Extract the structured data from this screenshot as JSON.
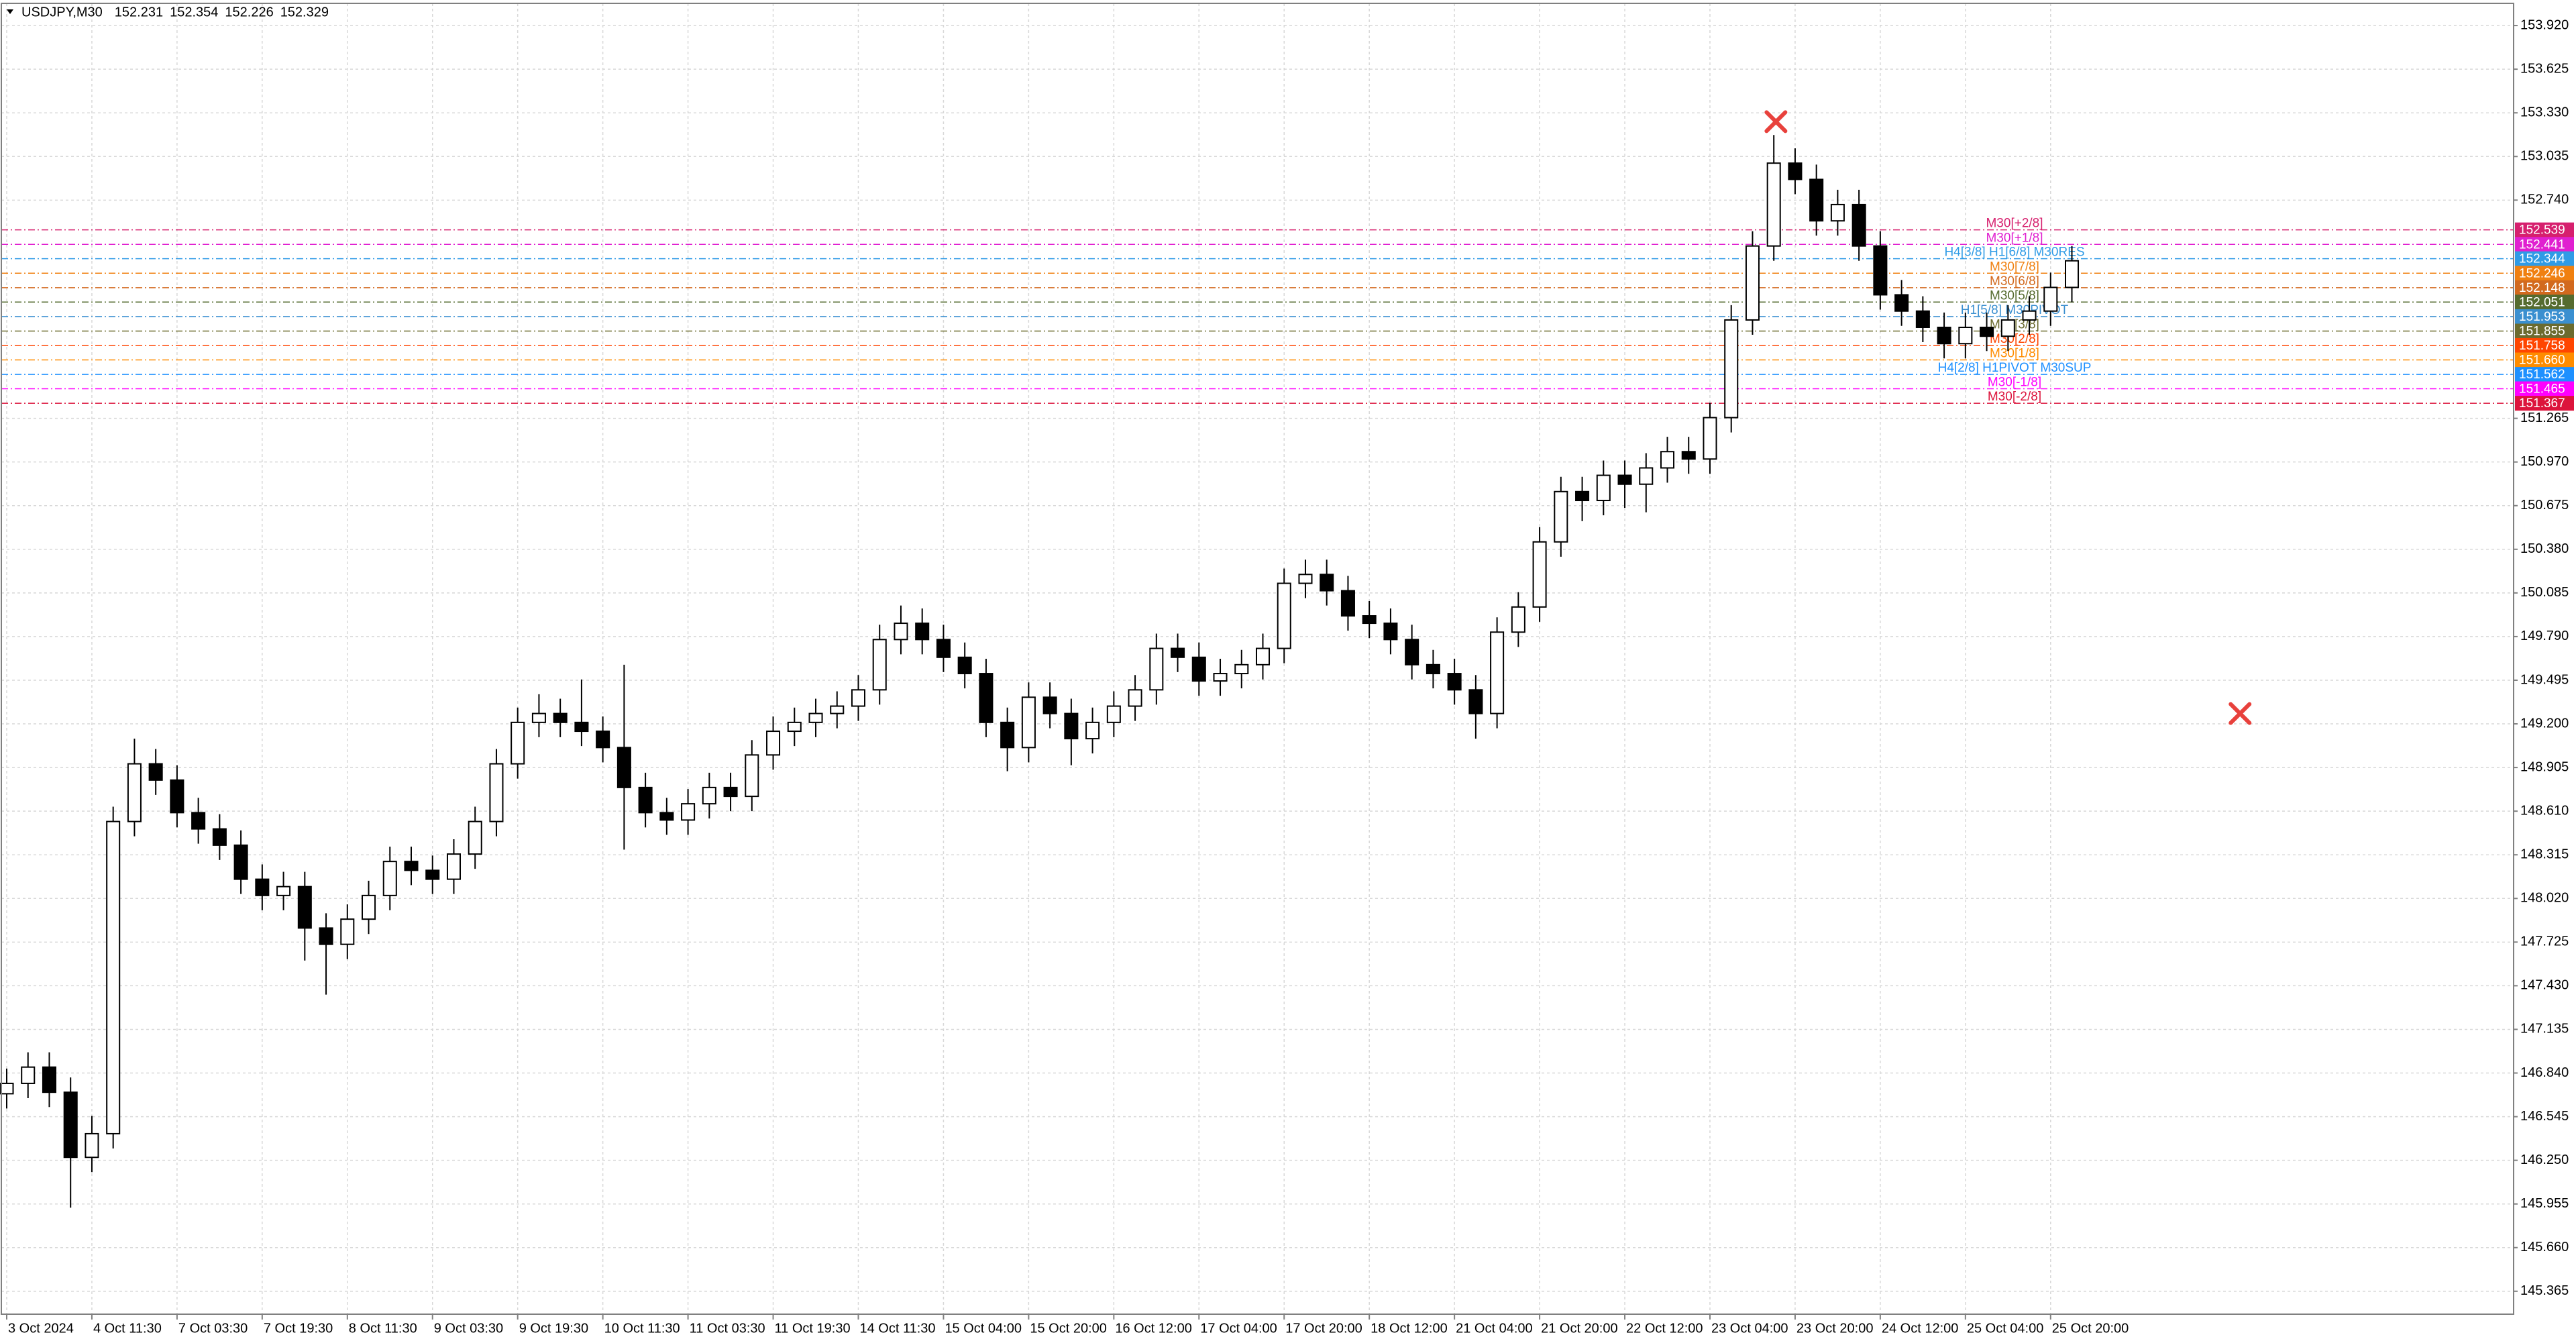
{
  "chart_data": {
    "type": "candlestick",
    "title": "USDJPY,M30",
    "quote": [
      152.231,
      152.354,
      152.226,
      152.329
    ],
    "categories": [
      "3 Oct 2024",
      null,
      null,
      null,
      "4 Oct 11:30",
      null,
      null,
      null,
      "7 Oct 03:30",
      null,
      null,
      null,
      "7 Oct 19:30",
      null,
      null,
      null,
      "8 Oct 11:30",
      null,
      null,
      null,
      "9 Oct 03:30",
      null,
      null,
      null,
      "9 Oct 19:30",
      null,
      null,
      null,
      "10 Oct 11:30",
      null,
      null,
      null,
      "11 Oct 03:30",
      null,
      null,
      null,
      "11 Oct 19:30",
      null,
      null,
      null,
      "14 Oct 11:30",
      null,
      null,
      null,
      "15 Oct 04:00",
      null,
      null,
      null,
      "15 Oct 20:00",
      null,
      null,
      null,
      "16 Oct 12:00",
      null,
      null,
      null,
      "17 Oct 04:00",
      null,
      null,
      null,
      "17 Oct 20:00",
      null,
      null,
      null,
      "18 Oct 12:00",
      null,
      null,
      null,
      "21 Oct 04:00",
      null,
      null,
      null,
      "21 Oct 20:00",
      null,
      null,
      null,
      "22 Oct 12:00",
      null,
      null,
      null,
      "23 Oct 04:00",
      null,
      null,
      null,
      "23 Oct 20:00",
      null,
      null,
      null,
      "24 Oct 12:00",
      null,
      null,
      null,
      "25 Oct 04:00",
      null,
      null,
      null,
      "25 Oct 20:00",
      null
    ],
    "open": [
      146.7,
      146.77,
      146.88,
      146.71,
      146.27,
      146.43,
      148.54,
      148.93,
      148.82,
      148.6,
      148.49,
      148.38,
      148.15,
      148.04,
      148.1,
      147.82,
      147.71,
      147.88,
      148.04,
      148.27,
      148.21,
      148.15,
      148.32,
      148.54,
      148.93,
      149.21,
      149.27,
      149.21,
      149.15,
      149.04,
      148.77,
      148.6,
      148.55,
      148.66,
      148.77,
      148.71,
      148.99,
      149.15,
      149.21,
      149.27,
      149.32,
      149.43,
      149.77,
      149.88,
      149.77,
      149.65,
      149.54,
      149.21,
      149.04,
      149.38,
      149.27,
      149.1,
      149.21,
      149.32,
      149.43,
      149.71,
      149.65,
      149.49,
      149.54,
      149.6,
      149.71,
      150.15,
      150.21,
      150.1,
      149.93,
      149.88,
      149.77,
      149.6,
      149.54,
      149.43,
      149.27,
      149.82,
      149.99,
      150.43,
      150.77,
      150.71,
      150.88,
      150.82,
      150.93,
      151.04,
      150.99,
      151.27,
      151.93,
      152.43,
      152.99,
      152.88,
      152.6,
      152.71,
      152.43,
      152.1,
      151.99,
      151.88,
      151.77,
      151.88,
      151.82,
      151.93,
      151.99,
      152.15
    ],
    "high": [
      146.87,
      146.98,
      146.98,
      146.81,
      146.55,
      148.64,
      149.1,
      149.03,
      148.92,
      148.7,
      148.59,
      148.48,
      148.25,
      148.2,
      148.2,
      147.92,
      147.98,
      148.14,
      148.37,
      148.37,
      148.31,
      148.42,
      148.64,
      149.03,
      149.31,
      149.4,
      149.37,
      149.5,
      149.25,
      149.6,
      148.87,
      148.7,
      148.76,
      148.87,
      148.87,
      149.09,
      149.25,
      149.31,
      149.37,
      149.42,
      149.53,
      149.87,
      150.0,
      149.98,
      149.87,
      149.75,
      149.64,
      149.31,
      149.48,
      149.48,
      149.37,
      149.31,
      149.42,
      149.53,
      149.81,
      149.81,
      149.75,
      149.64,
      149.7,
      149.81,
      150.25,
      150.31,
      150.31,
      150.2,
      150.03,
      149.98,
      149.87,
      149.7,
      149.64,
      149.53,
      149.92,
      150.09,
      150.53,
      150.87,
      150.87,
      150.98,
      150.98,
      151.03,
      151.14,
      151.14,
      151.37,
      152.03,
      152.53,
      153.18,
      153.09,
      152.98,
      152.81,
      152.81,
      152.53,
      152.2,
      152.09,
      151.98,
      151.98,
      151.98,
      152.03,
      152.09,
      152.25,
      152.43
    ],
    "low": [
      146.6,
      146.67,
      146.61,
      145.93,
      146.17,
      146.33,
      148.44,
      148.72,
      148.5,
      148.39,
      148.28,
      148.05,
      147.94,
      147.94,
      147.6,
      147.37,
      147.61,
      147.78,
      147.94,
      148.11,
      148.05,
      148.05,
      148.22,
      148.44,
      148.83,
      149.11,
      149.11,
      149.05,
      148.94,
      148.35,
      148.5,
      148.45,
      148.45,
      148.56,
      148.61,
      148.61,
      148.89,
      149.05,
      149.11,
      149.17,
      149.22,
      149.33,
      149.67,
      149.67,
      149.55,
      149.44,
      149.11,
      148.88,
      148.94,
      149.17,
      148.92,
      149.0,
      149.11,
      149.22,
      149.33,
      149.55,
      149.39,
      149.39,
      149.44,
      149.5,
      149.61,
      150.05,
      150.0,
      149.83,
      149.78,
      149.67,
      149.5,
      149.44,
      149.33,
      149.1,
      149.17,
      149.72,
      149.89,
      150.33,
      150.57,
      150.61,
      150.66,
      150.63,
      150.83,
      150.89,
      150.89,
      151.17,
      151.83,
      152.33,
      152.78,
      152.5,
      152.5,
      152.33,
      152.0,
      151.89,
      151.78,
      151.67,
      151.67,
      151.72,
      151.72,
      151.83,
      151.89,
      152.05
    ],
    "close": [
      146.77,
      146.88,
      146.71,
      146.27,
      146.43,
      148.54,
      148.93,
      148.82,
      148.6,
      148.49,
      148.38,
      148.15,
      148.04,
      148.1,
      147.82,
      147.71,
      147.88,
      148.04,
      148.27,
      148.21,
      148.15,
      148.32,
      148.54,
      148.93,
      149.21,
      149.27,
      149.21,
      149.15,
      149.04,
      148.77,
      148.6,
      148.55,
      148.66,
      148.77,
      148.71,
      148.99,
      149.15,
      149.21,
      149.27,
      149.32,
      149.43,
      149.77,
      149.88,
      149.77,
      149.65,
      149.54,
      149.21,
      149.04,
      149.38,
      149.27,
      149.1,
      149.21,
      149.32,
      149.43,
      149.71,
      149.65,
      149.49,
      149.54,
      149.6,
      149.71,
      150.15,
      150.21,
      150.1,
      149.93,
      149.88,
      149.77,
      149.6,
      149.54,
      149.43,
      149.27,
      149.82,
      149.99,
      150.43,
      150.77,
      150.71,
      150.88,
      150.82,
      150.93,
      151.04,
      150.99,
      151.27,
      151.93,
      152.43,
      152.99,
      152.88,
      152.6,
      152.71,
      152.43,
      152.1,
      151.99,
      151.88,
      151.77,
      151.88,
      151.82,
      151.93,
      151.99,
      152.15,
      152.33
    ],
    "color": "#000000",
    "ylim": [
      145.21,
      154.07
    ],
    "yticks": [
      {
        "value": 153.92,
        "label": "153.920"
      },
      153.625,
      {
        "value": 153.33,
        "label": "153.330"
      },
      153.035,
      {
        "value": 152.74,
        "label": "152.740"
      },
      151.265,
      {
        "value": 150.97,
        "label": "150.970"
      },
      150.675,
      {
        "value": 150.38,
        "label": "150.380"
      },
      150.085,
      {
        "value": 149.79,
        "label": "149.790"
      },
      149.495,
      {
        "value": 149.2,
        "label": "149.200"
      },
      148.905,
      {
        "value": 148.61,
        "label": "148.610"
      },
      148.315,
      {
        "value": 148.02,
        "label": "148.020"
      },
      147.725,
      {
        "value": 147.43,
        "label": "147.430"
      },
      147.135,
      {
        "value": 146.84,
        "label": "146.840"
      },
      146.545,
      {
        "value": 146.25,
        "label": "146.250"
      },
      145.955,
      {
        "value": 145.66,
        "label": "145.660"
      },
      145.365
    ],
    "grid": true,
    "levels": [
      {
        "name": "M30[+2/8]",
        "value": 152.539,
        "color": "#d6206e"
      },
      {
        "name": "M30[+1/8]",
        "value": 152.441,
        "color": "#e020d0"
      },
      {
        "name": "H4[3/8] H1[6/8] M30RES",
        "value": 152.344,
        "color": "#2f9be6"
      },
      {
        "name": "M30[7/8]",
        "value": 152.246,
        "color": "#f08010"
      },
      {
        "name": "M30[6/8]",
        "value": 152.148,
        "color": "#d2691e"
      },
      {
        "name": "M30[5/8]",
        "value": 152.051,
        "color": "#556b2f"
      },
      {
        "name": "H1[5/8] M30PIVOT",
        "value": 151.953,
        "color": "#3a8fd0"
      },
      {
        "name": "M30[3/8]",
        "value": 151.855,
        "color": "#6b6b2f"
      },
      {
        "name": "M30[2/8]",
        "value": 151.758,
        "color": "#ff4500"
      },
      {
        "name": "M30[1/8]",
        "value": 151.66,
        "label": "151.660",
        "color": "#ff8c00"
      },
      {
        "name": "H4[2/8] H1PIVOT M30SUP",
        "value": 151.562,
        "color": "#1e90ff"
      },
      {
        "name": "M30[-1/8]",
        "value": 151.465,
        "color": "#ff00ff"
      },
      {
        "name": "M30[-2/8]",
        "value": 151.367,
        "color": "#dc143c"
      }
    ],
    "markers": {
      "x": [
        83.1,
        104.9
      ],
      "y": [
        153.27,
        149.27
      ],
      "color": "#e8413c"
    }
  }
}
